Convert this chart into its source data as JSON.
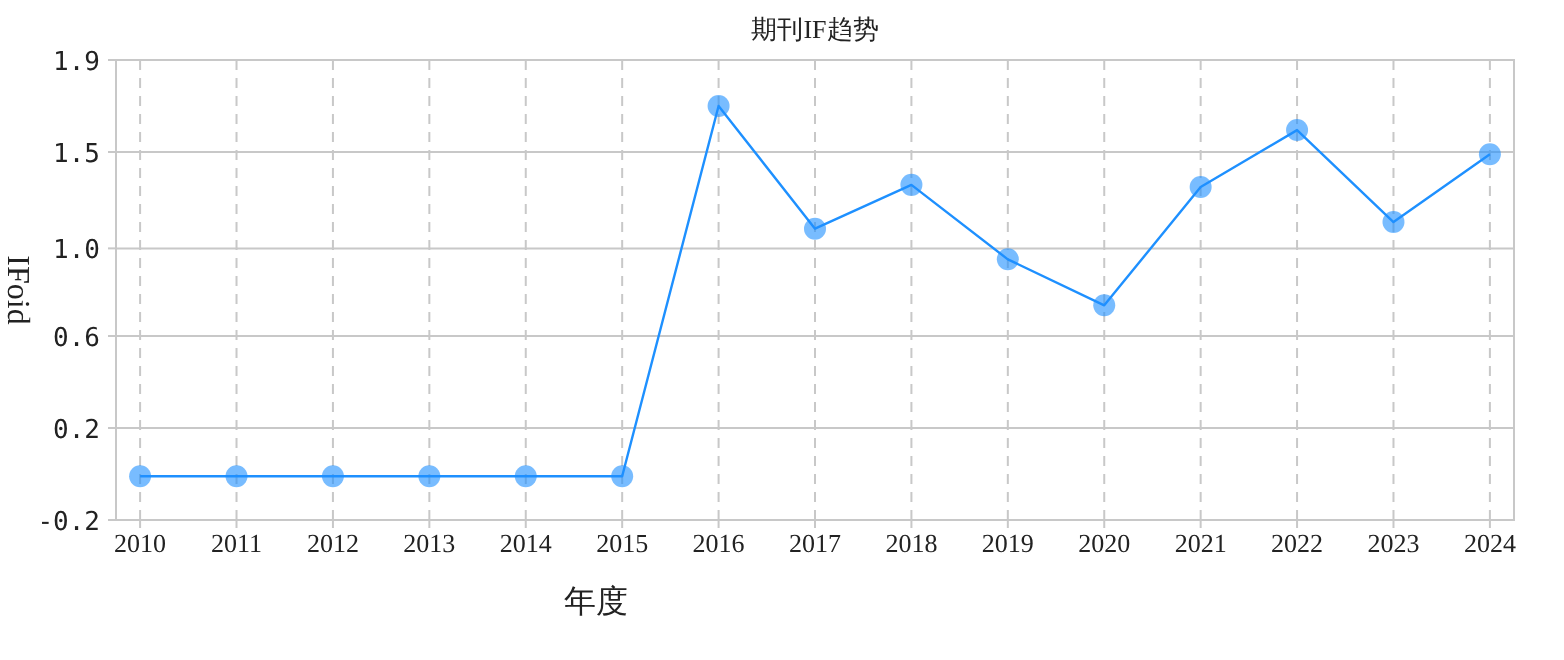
{
  "chart_data": {
    "type": "line",
    "title": "期刊IF趋势",
    "xlabel": "年度",
    "ylabel": "IFoid",
    "categories": [
      "2010",
      "2011",
      "2012",
      "2013",
      "2014",
      "2015",
      "2016",
      "2017",
      "2018",
      "2019",
      "2020",
      "2021",
      "2022",
      "2023",
      "2024"
    ],
    "values": [
      0,
      0,
      0,
      0,
      0,
      0,
      1.69,
      1.13,
      1.33,
      0.99,
      0.78,
      1.32,
      1.58,
      1.16,
      1.47
    ],
    "color": "#1e90ff",
    "ylim": [
      -0.2,
      1.9
    ],
    "yticks": [
      -0.2,
      {
        "value": 0.22,
        "label": "0.2"
      },
      {
        "value": 0.64,
        "label": "0.6"
      },
      {
        "value": 1.04,
        "label": "1.0"
      },
      {
        "value": 1.48,
        "label": "1.5"
      },
      1.9
    ],
    "grid": true,
    "marker": "circle",
    "line_style": "solid"
  }
}
